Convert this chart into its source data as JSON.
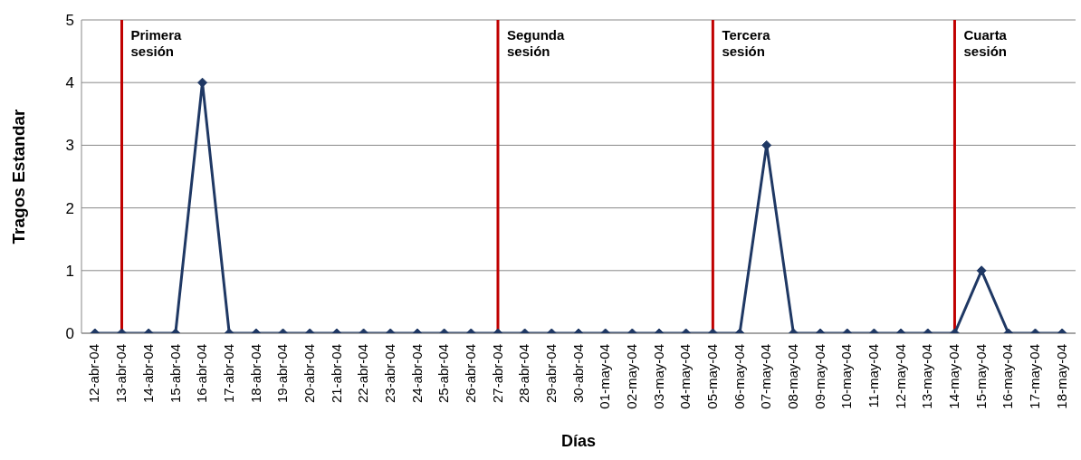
{
  "chart_data": {
    "type": "line",
    "xlabel": "Días",
    "ylabel": "Tragos Estandar",
    "categories": [
      "12-abr-04",
      "13-abr-04",
      "14-abr-04",
      "15-abr-04",
      "16-abr-04",
      "17-abr-04",
      "18-abr-04",
      "19-abr-04",
      "20-abr-04",
      "21-abr-04",
      "22-abr-04",
      "23-abr-04",
      "24-abr-04",
      "25-abr-04",
      "26-abr-04",
      "27-abr-04",
      "28-abr-04",
      "29-abr-04",
      "30-abr-04",
      "01-may-04",
      "02-may-04",
      "03-may-04",
      "04-may-04",
      "05-may-04",
      "06-may-04",
      "07-may-04",
      "08-may-04",
      "09-may-04",
      "10-may-04",
      "11-may-04",
      "12-may-04",
      "13-may-04",
      "14-may-04",
      "15-may-04",
      "16-may-04",
      "17-may-04",
      "18-may-04"
    ],
    "series": [
      {
        "color": "#1f3864",
        "values": [
          0,
          0,
          0,
          0,
          4,
          0,
          0,
          0,
          0,
          0,
          0,
          0,
          0,
          0,
          0,
          0,
          0,
          0,
          0,
          0,
          0,
          0,
          0,
          0,
          0,
          3,
          0,
          0,
          0,
          0,
          0,
          0,
          0,
          1,
          0,
          0,
          0
        ]
      }
    ],
    "ylim": [
      0,
      5
    ],
    "yticks": [
      0,
      1,
      2,
      3,
      4,
      5
    ],
    "grid": "y",
    "marker": "diamond",
    "line_style": "solid",
    "ref_lines": [
      {
        "axis": "x",
        "value": "13-abr-04",
        "label": "Primera sesión",
        "color": "#c00000"
      },
      {
        "axis": "x",
        "value": "27-abr-04",
        "label": "Segunda sesión",
        "color": "#c00000"
      },
      {
        "axis": "x",
        "value": "05-may-04",
        "label": "Tercera sesión",
        "color": "#c00000"
      },
      {
        "axis": "x",
        "value": "14-may-04",
        "label": "Cuarta sesión",
        "color": "#c00000"
      }
    ]
  }
}
